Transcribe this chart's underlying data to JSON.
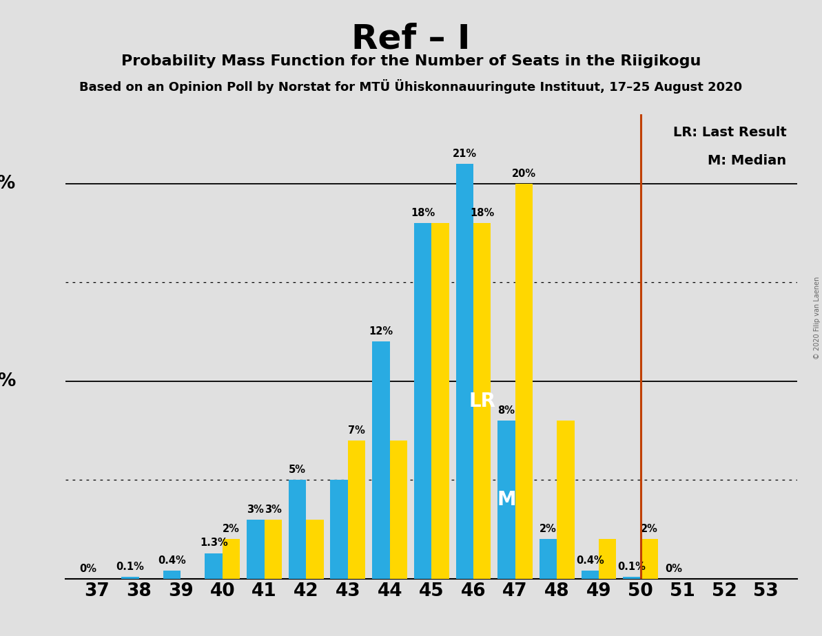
{
  "title": "Ref – I",
  "subtitle": "Probability Mass Function for the Number of Seats in the Riigikogu",
  "source_line": "Based on an Opinion Poll by Norstat for MTÜ Ühiskonnauuringute Instituut, 17–25 August 2020",
  "copyright": "© 2020 Filip van Laenen",
  "seats": [
    37,
    38,
    39,
    40,
    41,
    42,
    43,
    44,
    45,
    46,
    47,
    48,
    49,
    50,
    51,
    52,
    53
  ],
  "blue_values": [
    0.0,
    0.1,
    0.4,
    1.3,
    3.0,
    5.0,
    5.0,
    12.0,
    18.0,
    21.0,
    8.0,
    2.0,
    0.4,
    0.1,
    0.0,
    0.0,
    0.0
  ],
  "yellow_values": [
    0.0,
    0.0,
    0.0,
    2.0,
    3.0,
    3.0,
    7.0,
    7.0,
    18.0,
    18.0,
    20.0,
    8.0,
    2.0,
    2.0,
    0.0,
    0.0,
    0.0
  ],
  "blue_label_vals": [
    "0%",
    "0.1%",
    "0.4%",
    "1.3%",
    "3%",
    "5%",
    "",
    "12%",
    "18%",
    "21%",
    "8%",
    "2%",
    "0.4%",
    "0.1%",
    "0%",
    "",
    ""
  ],
  "yellow_label_vals": [
    "",
    "",
    "",
    "2%",
    "3%",
    "",
    "7%",
    "",
    "",
    "18%",
    "20%",
    "",
    "",
    "2%",
    "",
    "",
    ""
  ],
  "blue_color": "#29ABE2",
  "yellow_color": "#FFD700",
  "background_color": "#E0E0E0",
  "lr_seat": 46,
  "median_seat": 47,
  "last_result_line_seat": 50,
  "orange_line_color": "#C04000",
  "solid_gridlines": [
    10,
    20
  ],
  "dotted_gridlines": [
    5,
    15
  ],
  "legend_lr": "LR: Last Result",
  "legend_m": "M: Median",
  "ylim_max": 23.5
}
